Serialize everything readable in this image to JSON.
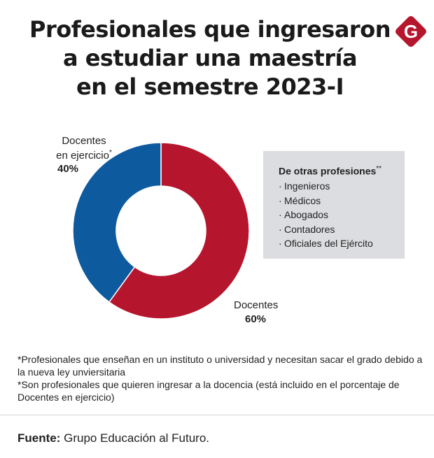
{
  "title_lines": [
    "Profesionales que ingresaron",
    "a estudiar una maestría",
    "en el semestre 2023-I"
  ],
  "logo_letter": "G",
  "colors": {
    "brand": "#b5152d",
    "blue": "#0e5a9e",
    "red": "#b5152d",
    "box_bg": "#dcdde0"
  },
  "chart_data": {
    "type": "pie",
    "donut": true,
    "title": "Profesionales que ingresaron a estudiar una maestría en el semestre 2023-I",
    "slices": [
      {
        "label": "Docentes en ejercicio*",
        "value": 40,
        "display": "40%",
        "color": "#0e5a9e"
      },
      {
        "label": "Docentes",
        "value": 60,
        "display": "60%",
        "color": "#b5152d"
      }
    ]
  },
  "labels": {
    "ejercicio_line1": "Docentes",
    "ejercicio_line2": "en ejercicio",
    "ejercicio_mark": "*",
    "ejercicio_pct": "40%",
    "docentes": "Docentes",
    "docentes_pct": "60%"
  },
  "box": {
    "title": "De otras profesiones",
    "title_mark": "**",
    "bullet": "·",
    "items": [
      "Ingenieros",
      "Médicos",
      "Abogados",
      "Contadores",
      "Oficiales del Ejército"
    ]
  },
  "notes": [
    "*Profesionales que enseñan en un instituto o universidad y necesitan sacar el grado debido a la nueva ley unviersitaria",
    "*Son profesionales que quieren ingresar a la docencia (está incluido en el porcentaje de Docentes en ejercicio)"
  ],
  "source": {
    "label": "Fuente:",
    "text": " Grupo Educación al Futuro."
  }
}
